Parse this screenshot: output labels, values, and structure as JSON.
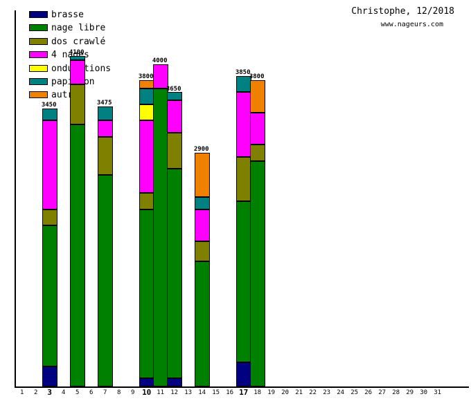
{
  "header": {
    "title": "Christophe, 12/2018",
    "subtitle": "www.nageurs.com"
  },
  "chart_data": {
    "type": "bar",
    "stacked": true,
    "title": "Christophe, 12/2018",
    "subtitle": "www.nageurs.com",
    "unit": "meters",
    "xlabel": "day of month (December 2018)",
    "ylabel": "",
    "grid": false,
    "legend_position": "top-left",
    "axis_color": "#000000",
    "background_color": "#ffffff",
    "x_axis": {
      "days": [
        1,
        2,
        3,
        4,
        5,
        6,
        7,
        8,
        9,
        10,
        11,
        12,
        13,
        14,
        15,
        16,
        17,
        18,
        19,
        20,
        21,
        22,
        23,
        24,
        25,
        26,
        27,
        28,
        29,
        30,
        31
      ],
      "bold_days": [
        3,
        10,
        17
      ]
    },
    "legend": [
      {
        "label": "brasse",
        "color": "#000080"
      },
      {
        "label": "nage libre",
        "color": "#008000"
      },
      {
        "label": "dos crawlé",
        "color": "#808000"
      },
      {
        "label": "4 nages",
        "color": "#ff00ff"
      },
      {
        "label": "ondulations",
        "color": "#ffff00"
      },
      {
        "label": "papillon",
        "color": "#008080"
      },
      {
        "label": "autre",
        "color": "#f08000"
      }
    ],
    "bars": [
      {
        "day": 3,
        "total": 3450,
        "segments": [
          {
            "stroke": "brasse",
            "m": 250
          },
          {
            "stroke": "nage libre",
            "m": 1750
          },
          {
            "stroke": "dos crawlé",
            "m": 200
          },
          {
            "stroke": "4 nages",
            "m": 1100
          },
          {
            "stroke": "papillon",
            "m": 150
          }
        ]
      },
      {
        "day": 5,
        "total": 4100,
        "segments": [
          {
            "stroke": "nage libre",
            "m": 3250
          },
          {
            "stroke": "dos crawlé",
            "m": 500
          },
          {
            "stroke": "4 nages",
            "m": 300
          },
          {
            "stroke": "papillon",
            "m": 50
          }
        ]
      },
      {
        "day": 7,
        "total": 3475,
        "segments": [
          {
            "stroke": "nage libre",
            "m": 2625
          },
          {
            "stroke": "dos crawlé",
            "m": 475
          },
          {
            "stroke": "4 nages",
            "m": 200
          },
          {
            "stroke": "papillon",
            "m": 175
          }
        ]
      },
      {
        "day": 10,
        "total": 3800,
        "segments": [
          {
            "stroke": "brasse",
            "m": 100
          },
          {
            "stroke": "nage libre",
            "m": 2100
          },
          {
            "stroke": "dos crawlé",
            "m": 200
          },
          {
            "stroke": "4 nages",
            "m": 900
          },
          {
            "stroke": "ondulations",
            "m": 200
          },
          {
            "stroke": "papillon",
            "m": 200
          },
          {
            "stroke": "autre",
            "m": 100
          }
        ]
      },
      {
        "day": 11,
        "total": 4000,
        "segments": [
          {
            "stroke": "nage libre",
            "m": 3700
          },
          {
            "stroke": "4 nages",
            "m": 300
          }
        ]
      },
      {
        "day": 12,
        "total": 3650,
        "segments": [
          {
            "stroke": "brasse",
            "m": 100
          },
          {
            "stroke": "nage libre",
            "m": 2600
          },
          {
            "stroke": "dos crawlé",
            "m": 450
          },
          {
            "stroke": "4 nages",
            "m": 400
          },
          {
            "stroke": "papillon",
            "m": 100
          }
        ]
      },
      {
        "day": 14,
        "total": 2900,
        "segments": [
          {
            "stroke": "nage libre",
            "m": 1550
          },
          {
            "stroke": "dos crawlé",
            "m": 250
          },
          {
            "stroke": "4 nages",
            "m": 400
          },
          {
            "stroke": "papillon",
            "m": 150
          },
          {
            "stroke": "autre",
            "m": 550
          }
        ]
      },
      {
        "day": 17,
        "total": 3850,
        "segments": [
          {
            "stroke": "brasse",
            "m": 300
          },
          {
            "stroke": "nage libre",
            "m": 2000
          },
          {
            "stroke": "dos crawlé",
            "m": 550
          },
          {
            "stroke": "4 nages",
            "m": 800
          },
          {
            "stroke": "papillon",
            "m": 200
          }
        ]
      },
      {
        "day": 18,
        "total": 3800,
        "segments": [
          {
            "stroke": "nage libre",
            "m": 2800
          },
          {
            "stroke": "dos crawlé",
            "m": 200
          },
          {
            "stroke": "4 nages",
            "m": 400
          },
          {
            "stroke": "autre",
            "m": 400
          }
        ]
      }
    ]
  }
}
